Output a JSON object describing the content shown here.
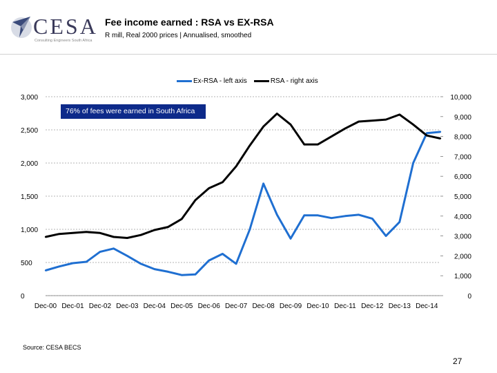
{
  "header": {
    "title": "Fee income earned : RSA vs EX-RSA",
    "subtitle": "R mill, Real 2000 prices | Annualised, smoothed",
    "logo_text": "CESA",
    "logo_tagline": "Consulting Engineers South Africa"
  },
  "annotation": "76% of fees were earned in South Africa",
  "source": "Source: CESA BECS",
  "page_number": "27",
  "colors": {
    "ex_rsa": "#1f6fd1",
    "rsa": "#000000",
    "annotation_bg": "#0d2a8a"
  },
  "chart_data": {
    "type": "line",
    "title": "Fee income earned : RSA vs EX-RSA",
    "categories": [
      "Dec-00",
      "Dec-01",
      "Dec-02",
      "Dec-03",
      "Dec-04",
      "Dec-05",
      "Dec-06",
      "Dec-07",
      "Dec-08",
      "Dec-09",
      "Dec-10",
      "Dec-11",
      "Dec-12",
      "Dec-13",
      "Dec-14"
    ],
    "x": [
      "Dec-00",
      "Jun-01",
      "Dec-01",
      "Jun-02",
      "Dec-02",
      "Jun-03",
      "Dec-03",
      "Jun-04",
      "Dec-04",
      "Jun-05",
      "Dec-05",
      "Jun-06",
      "Dec-06",
      "Jun-07",
      "Dec-07",
      "Jun-08",
      "Dec-08",
      "Jun-09",
      "Dec-09",
      "Jun-10",
      "Dec-10",
      "Jun-11",
      "Dec-11",
      "Jun-12",
      "Dec-12",
      "Jun-13",
      "Dec-13",
      "Jun-14",
      "Dec-14",
      "Jun-15"
    ],
    "series": [
      {
        "name": "Ex-RSA - left axis",
        "axis": "left",
        "values": [
          380,
          440,
          490,
          510,
          660,
          710,
          600,
          480,
          400,
          360,
          310,
          320,
          530,
          630,
          480,
          1000,
          1690,
          1220,
          860,
          1210,
          1210,
          1170,
          1200,
          1220,
          1160,
          900,
          1110,
          2000,
          2450,
          2470
        ]
      },
      {
        "name": "RSA - right axis",
        "axis": "right",
        "values": [
          2950,
          3100,
          3150,
          3200,
          3150,
          2950,
          2900,
          3050,
          3300,
          3450,
          3850,
          4800,
          5400,
          5700,
          6500,
          7550,
          8500,
          9150,
          8600,
          7600,
          7600,
          8000,
          8400,
          8750,
          8800,
          8850,
          9100,
          8600,
          8050,
          7900
        ]
      }
    ],
    "y_left": {
      "lim": [
        0,
        3000
      ],
      "ticks": [
        "0",
        "500",
        "1,000",
        "1,500",
        "2,000",
        "2,500",
        "3,000"
      ]
    },
    "y_right": {
      "lim": [
        0,
        10000
      ],
      "ticks": [
        "0",
        "1,000",
        "2,000",
        "3,000",
        "4,000",
        "5,000",
        "6,000",
        "7,000",
        "8,000",
        "9,000",
        "10,000"
      ]
    },
    "grid": true,
    "legend": "top-center"
  }
}
